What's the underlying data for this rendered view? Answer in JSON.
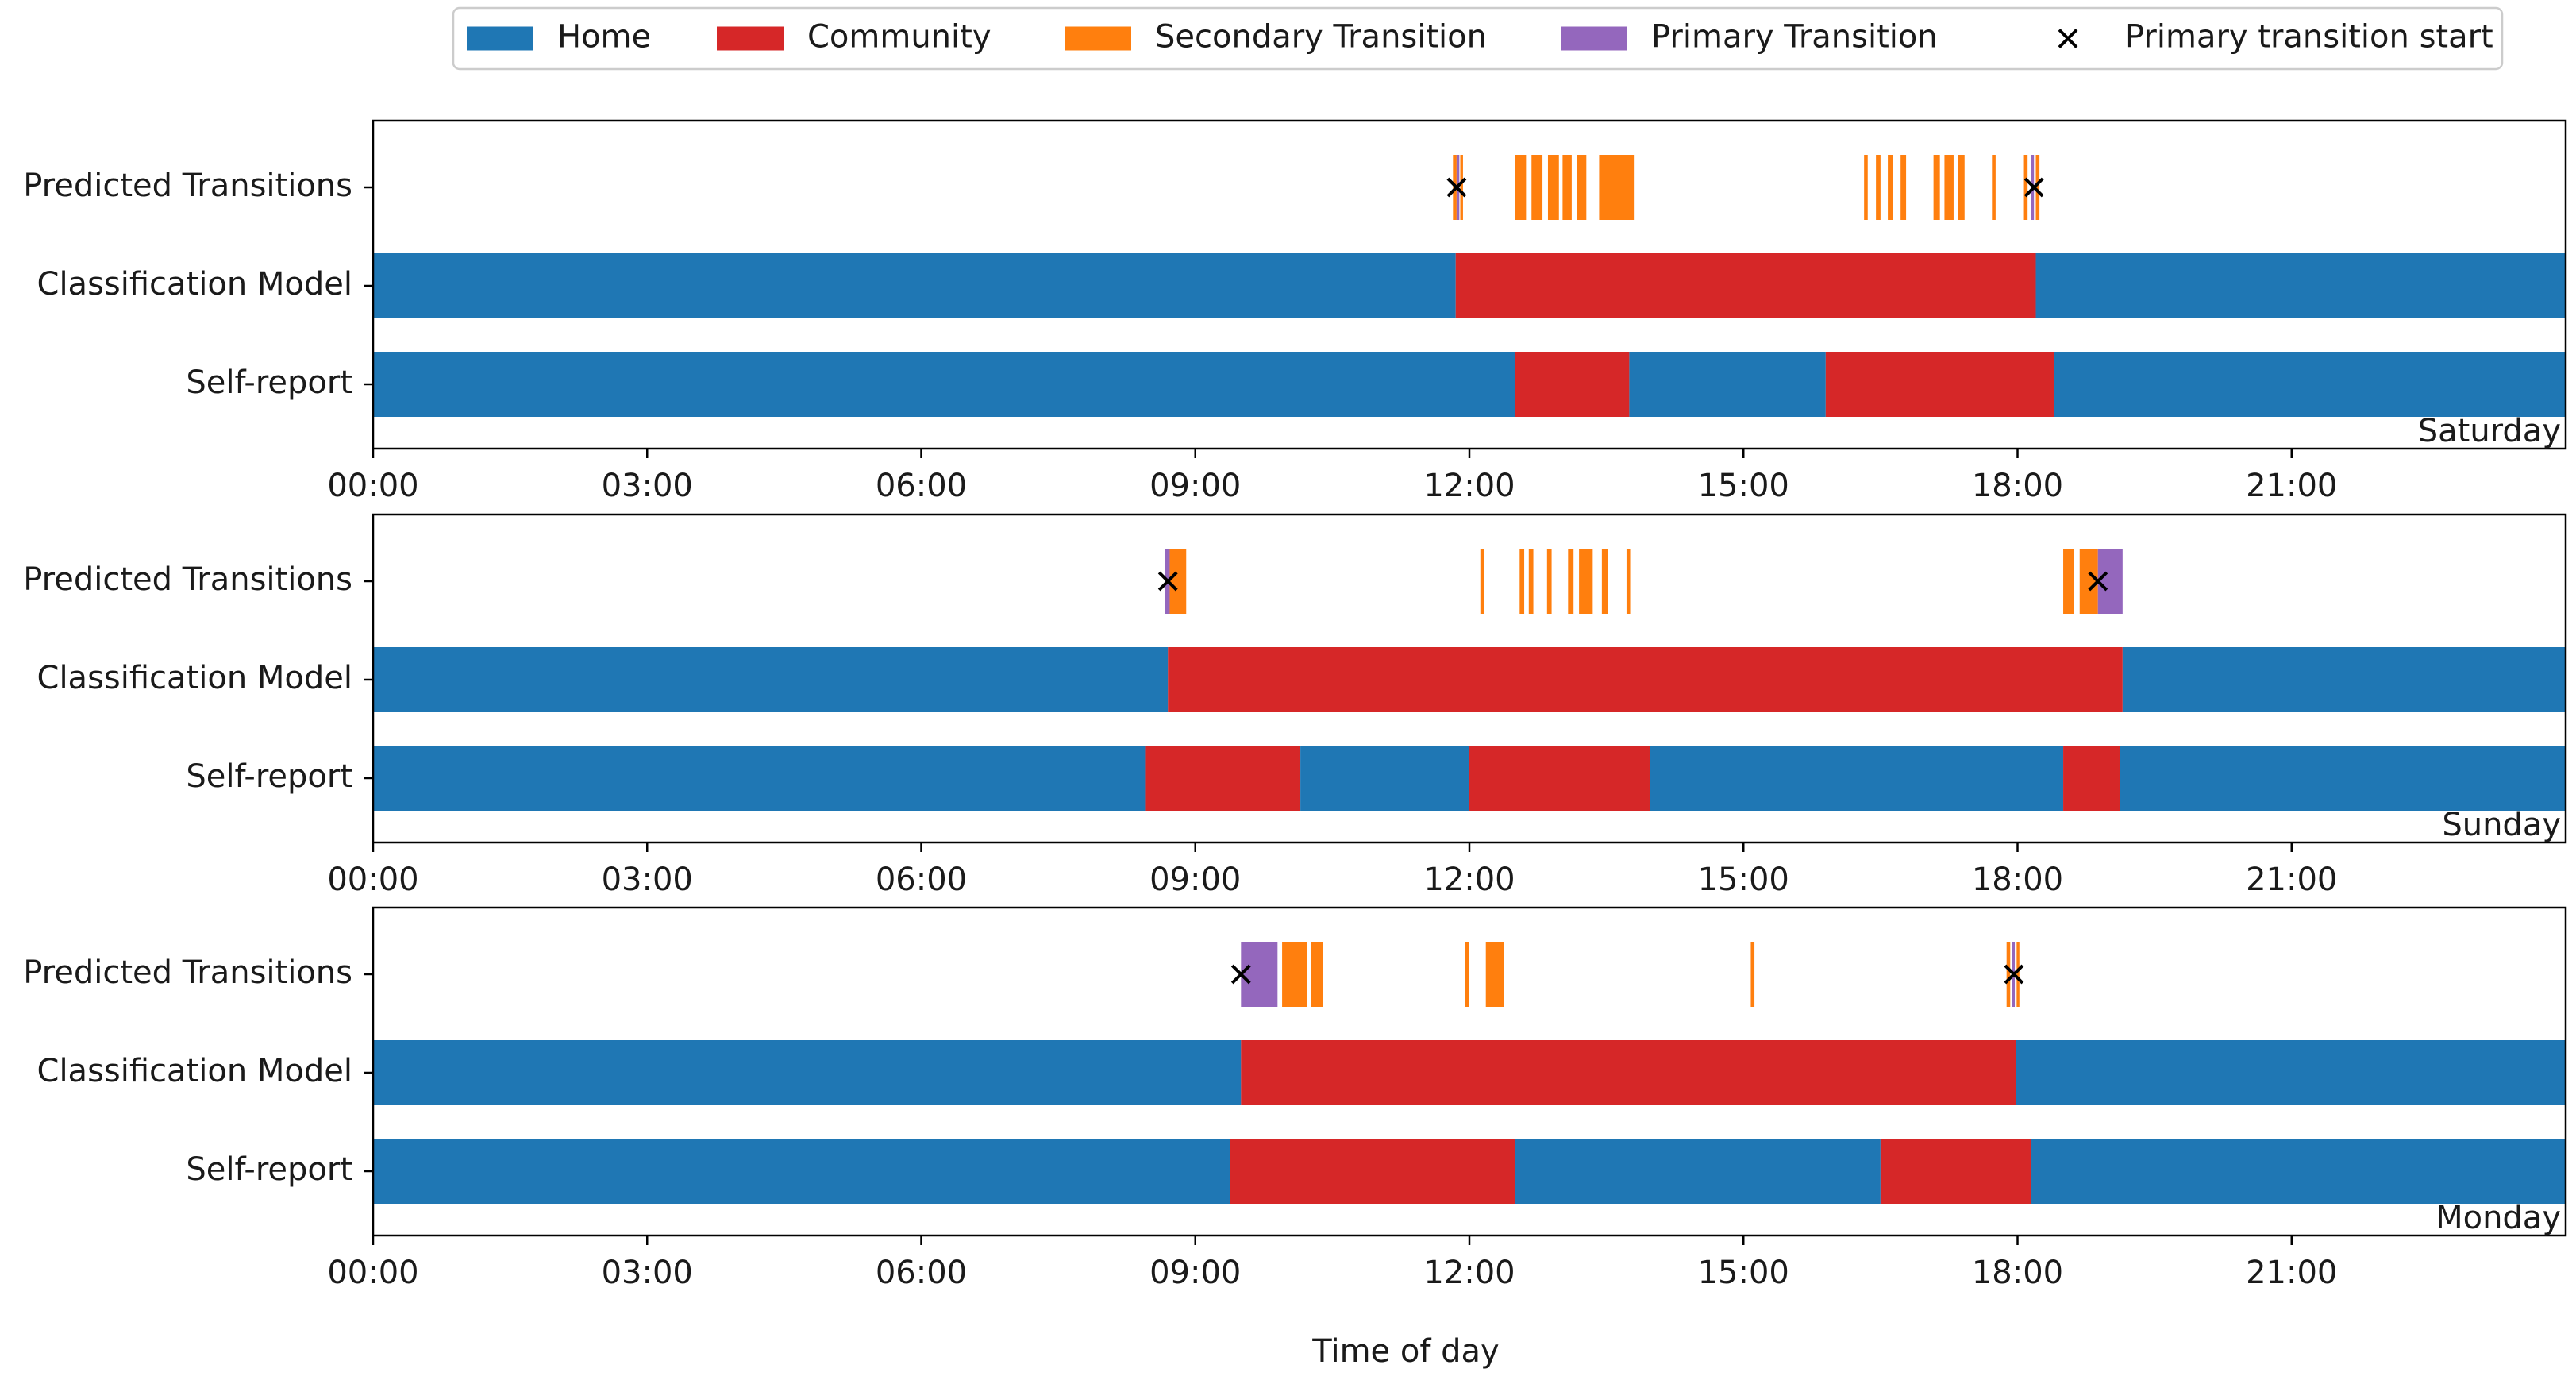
{
  "chart_data": {
    "type": "timeline",
    "xlabel": "Time of day",
    "x_range_hours": [
      0,
      24
    ],
    "x_ticks": [
      "00:00",
      "03:00",
      "06:00",
      "09:00",
      "12:00",
      "15:00",
      "18:00",
      "21:00"
    ],
    "x_tick_hours": [
      0,
      3,
      6,
      9,
      12,
      15,
      18,
      21
    ],
    "rows": [
      "Predicted Transitions",
      "Classification Model",
      "Self-report"
    ],
    "legend": {
      "placement": "top-center",
      "entries": [
        {
          "label": "Home",
          "kind": "patch",
          "color": "#1f77b4"
        },
        {
          "label": "Community",
          "kind": "patch",
          "color": "#d62728"
        },
        {
          "label": "Secondary Transition",
          "kind": "patch",
          "color": "#ff7f0e"
        },
        {
          "label": "Primary Transition",
          "kind": "patch",
          "color": "#9467bd"
        },
        {
          "label": "Primary transition start",
          "kind": "marker",
          "color": "#000000"
        }
      ]
    },
    "colors": {
      "Home": "#1f77b4",
      "Community": "#d62728",
      "Secondary Transition": "#ff7f0e",
      "Primary Transition": "#9467bd",
      "Primary transition start": "#000000"
    },
    "panels": [
      {
        "day": "Saturday",
        "self_report": [
          {
            "start": 0.0,
            "end": 12.5,
            "state": "Home"
          },
          {
            "start": 12.5,
            "end": 13.75,
            "state": "Community"
          },
          {
            "start": 13.75,
            "end": 15.9,
            "state": "Home"
          },
          {
            "start": 15.9,
            "end": 18.4,
            "state": "Community"
          },
          {
            "start": 18.4,
            "end": 24.0,
            "state": "Home"
          }
        ],
        "classification": [
          {
            "start": 0.0,
            "end": 11.85,
            "state": "Home"
          },
          {
            "start": 11.85,
            "end": 18.2,
            "state": "Community"
          },
          {
            "start": 18.2,
            "end": 24.0,
            "state": "Home"
          }
        ],
        "transitions": [
          {
            "start": 11.82,
            "end": 11.86,
            "type": "Secondary Transition"
          },
          {
            "start": 11.86,
            "end": 11.89,
            "type": "Primary Transition"
          },
          {
            "start": 11.9,
            "end": 11.93,
            "type": "Secondary Transition"
          },
          {
            "start": 12.5,
            "end": 12.62,
            "type": "Secondary Transition"
          },
          {
            "start": 12.68,
            "end": 12.8,
            "type": "Secondary Transition"
          },
          {
            "start": 12.86,
            "end": 12.98,
            "type": "Secondary Transition"
          },
          {
            "start": 13.02,
            "end": 13.12,
            "type": "Secondary Transition"
          },
          {
            "start": 13.18,
            "end": 13.28,
            "type": "Secondary Transition"
          },
          {
            "start": 13.42,
            "end": 13.8,
            "type": "Secondary Transition"
          },
          {
            "start": 16.32,
            "end": 16.36,
            "type": "Secondary Transition"
          },
          {
            "start": 16.45,
            "end": 16.5,
            "type": "Secondary Transition"
          },
          {
            "start": 16.58,
            "end": 16.64,
            "type": "Secondary Transition"
          },
          {
            "start": 16.72,
            "end": 16.78,
            "type": "Secondary Transition"
          },
          {
            "start": 17.08,
            "end": 17.15,
            "type": "Secondary Transition"
          },
          {
            "start": 17.2,
            "end": 17.3,
            "type": "Secondary Transition"
          },
          {
            "start": 17.35,
            "end": 17.42,
            "type": "Secondary Transition"
          },
          {
            "start": 17.72,
            "end": 17.76,
            "type": "Secondary Transition"
          },
          {
            "start": 18.07,
            "end": 18.11,
            "type": "Secondary Transition"
          },
          {
            "start": 18.15,
            "end": 18.18,
            "type": "Primary Transition"
          },
          {
            "start": 18.2,
            "end": 18.24,
            "type": "Secondary Transition"
          }
        ],
        "primary_starts": [
          11.86,
          18.18
        ]
      },
      {
        "day": "Sunday",
        "self_report": [
          {
            "start": 0.0,
            "end": 8.45,
            "state": "Home"
          },
          {
            "start": 8.45,
            "end": 10.15,
            "state": "Community"
          },
          {
            "start": 10.15,
            "end": 12.0,
            "state": "Home"
          },
          {
            "start": 12.0,
            "end": 13.98,
            "state": "Community"
          },
          {
            "start": 13.98,
            "end": 18.5,
            "state": "Home"
          },
          {
            "start": 18.5,
            "end": 19.12,
            "state": "Community"
          },
          {
            "start": 19.12,
            "end": 24.0,
            "state": "Home"
          }
        ],
        "classification": [
          {
            "start": 0.0,
            "end": 8.7,
            "state": "Home"
          },
          {
            "start": 8.7,
            "end": 19.15,
            "state": "Community"
          },
          {
            "start": 19.15,
            "end": 24.0,
            "state": "Home"
          }
        ],
        "transitions": [
          {
            "start": 8.67,
            "end": 8.72,
            "type": "Primary Transition"
          },
          {
            "start": 8.72,
            "end": 8.9,
            "type": "Secondary Transition"
          },
          {
            "start": 12.12,
            "end": 12.16,
            "type": "Secondary Transition"
          },
          {
            "start": 12.55,
            "end": 12.6,
            "type": "Secondary Transition"
          },
          {
            "start": 12.65,
            "end": 12.7,
            "type": "Secondary Transition"
          },
          {
            "start": 12.85,
            "end": 12.9,
            "type": "Secondary Transition"
          },
          {
            "start": 13.08,
            "end": 13.14,
            "type": "Secondary Transition"
          },
          {
            "start": 13.2,
            "end": 13.35,
            "type": "Secondary Transition"
          },
          {
            "start": 13.45,
            "end": 13.52,
            "type": "Secondary Transition"
          },
          {
            "start": 13.72,
            "end": 13.76,
            "type": "Secondary Transition"
          },
          {
            "start": 18.5,
            "end": 18.62,
            "type": "Secondary Transition"
          },
          {
            "start": 18.68,
            "end": 18.88,
            "type": "Secondary Transition"
          },
          {
            "start": 18.88,
            "end": 19.15,
            "type": "Primary Transition"
          }
        ],
        "primary_starts": [
          8.7,
          18.88
        ]
      },
      {
        "day": "Monday",
        "self_report": [
          {
            "start": 0.0,
            "end": 9.38,
            "state": "Home"
          },
          {
            "start": 9.38,
            "end": 12.5,
            "state": "Community"
          },
          {
            "start": 12.5,
            "end": 16.5,
            "state": "Home"
          },
          {
            "start": 16.5,
            "end": 18.15,
            "state": "Community"
          },
          {
            "start": 18.15,
            "end": 24.0,
            "state": "Home"
          }
        ],
        "classification": [
          {
            "start": 0.0,
            "end": 9.5,
            "state": "Home"
          },
          {
            "start": 9.5,
            "end": 17.98,
            "state": "Community"
          },
          {
            "start": 17.98,
            "end": 24.0,
            "state": "Home"
          }
        ],
        "transitions": [
          {
            "start": 9.5,
            "end": 9.9,
            "type": "Primary Transition"
          },
          {
            "start": 9.95,
            "end": 10.22,
            "type": "Secondary Transition"
          },
          {
            "start": 10.27,
            "end": 10.4,
            "type": "Secondary Transition"
          },
          {
            "start": 11.95,
            "end": 12.0,
            "type": "Secondary Transition"
          },
          {
            "start": 12.18,
            "end": 12.38,
            "type": "Secondary Transition"
          },
          {
            "start": 15.08,
            "end": 15.12,
            "type": "Secondary Transition"
          },
          {
            "start": 17.88,
            "end": 17.92,
            "type": "Secondary Transition"
          },
          {
            "start": 17.94,
            "end": 17.97,
            "type": "Primary Transition"
          },
          {
            "start": 17.99,
            "end": 18.02,
            "type": "Secondary Transition"
          }
        ],
        "primary_starts": [
          9.5,
          17.96
        ]
      }
    ]
  }
}
